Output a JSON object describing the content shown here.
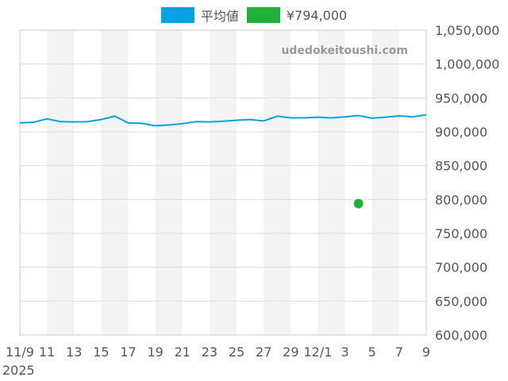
{
  "watermark": "udedokeitoushi.com",
  "legend": [
    {
      "label": "平均値",
      "color": "#0aa0e6"
    },
    {
      "label": "¥794,000",
      "color": "#22b03a"
    }
  ],
  "chart_data": {
    "type": "line",
    "title": "",
    "xlabel": "",
    "ylabel": "",
    "ylim": [
      600000,
      1050000
    ],
    "y_ticks": [
      600000,
      650000,
      700000,
      750000,
      800000,
      850000,
      900000,
      950000,
      1000000,
      1050000
    ],
    "y_tick_labels": [
      "600,000",
      "650,000",
      "700,000",
      "750,000",
      "800,000",
      "850,000",
      "900,000",
      "950,000",
      "1,000,000",
      "1,050,000"
    ],
    "x_tick_labels": [
      "11/9",
      "11",
      "13",
      "15",
      "17",
      "19",
      "21",
      "23",
      "25",
      "27",
      "29",
      "12/1",
      "3",
      "5",
      "7",
      "9"
    ],
    "x_year_label": "2025",
    "grid": true,
    "alternate_band_color": "#f3f3f3",
    "series": [
      {
        "name": "平均値",
        "color": "#0aa0e6",
        "values": [
          913000,
          914000,
          919000,
          915000,
          914500,
          915000,
          918000,
          923000,
          913000,
          912500,
          909000,
          910000,
          912000,
          915000,
          914500,
          915500,
          917000,
          918000,
          916000,
          923000,
          920500,
          920500,
          921500,
          920500,
          922000,
          924000,
          920000,
          921500,
          923500,
          922000,
          925000
        ]
      },
      {
        "name": "¥794,000",
        "color": "#22b03a",
        "type": "scatter",
        "points": [
          {
            "day_index": 25,
            "value": 794000
          }
        ]
      }
    ]
  }
}
